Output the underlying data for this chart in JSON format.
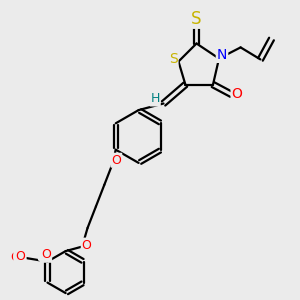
{
  "bg_color": "#ebebeb",
  "atom_colors": {
    "S": "#c8b400",
    "N": "#0000ff",
    "O": "#ff0000",
    "H": "#008080",
    "C": "#000000"
  },
  "bond_color": "#000000",
  "bond_width": 1.6,
  "font_size_atom": 10,
  "font_size_small": 9
}
